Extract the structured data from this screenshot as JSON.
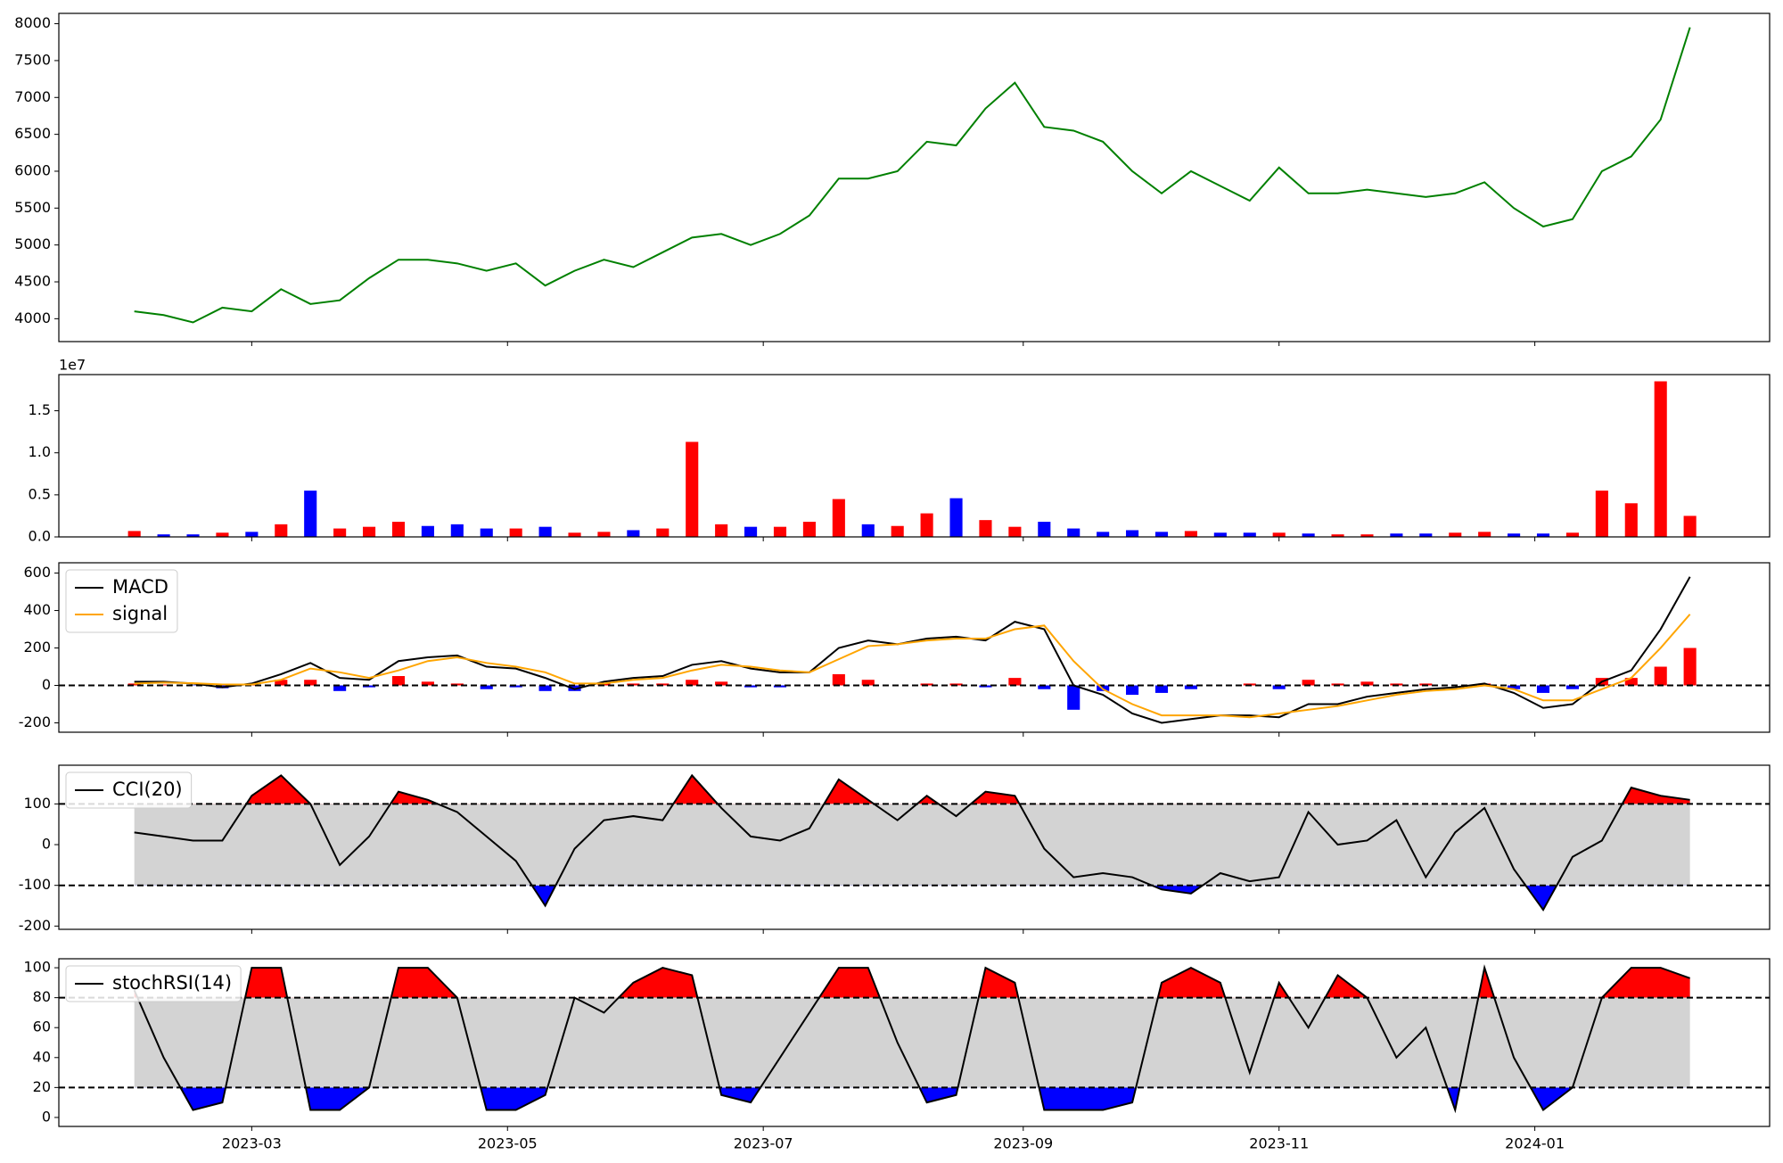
{
  "chart_data": [
    {
      "type": "line",
      "x": [
        31,
        38,
        45,
        52,
        59,
        66,
        73,
        80,
        87,
        94,
        101,
        108,
        115,
        122,
        129,
        136,
        143,
        150,
        157,
        164,
        171,
        178,
        185,
        192,
        199,
        206,
        213,
        220,
        227,
        234,
        241,
        248,
        255,
        262,
        269,
        276,
        283,
        290,
        297,
        304,
        311,
        318,
        325,
        332,
        339,
        346,
        353,
        360,
        367,
        374,
        381,
        388,
        395,
        402
      ],
      "series": [
        {
          "color": "green",
          "values": [
            4100,
            4050,
            3950,
            4150,
            4100,
            4400,
            4200,
            4250,
            4550,
            4800,
            4800,
            4750,
            4650,
            4750,
            4450,
            4650,
            4800,
            4700,
            4900,
            5100,
            5150,
            5000,
            5150,
            5400,
            5900,
            5900,
            6000,
            6400,
            6350,
            6850,
            7200,
            6600,
            6550,
            6400,
            6000,
            5700,
            6000,
            5800,
            5600,
            6050,
            5700,
            5700,
            5750,
            5700,
            5650,
            5700,
            5850,
            5500,
            5250,
            5350,
            6000,
            6200,
            6700,
            7950
          ]
        }
      ],
      "xlim": [
        13,
        421
      ],
      "ylim": [
        3690,
        8140
      ],
      "yticks": [
        4000,
        4500,
        5000,
        5500,
        6000,
        6500,
        7000,
        7500,
        8000
      ]
    },
    {
      "type": "bar",
      "x": [
        31,
        38,
        45,
        52,
        59,
        66,
        73,
        80,
        87,
        94,
        101,
        108,
        115,
        122,
        129,
        136,
        143,
        150,
        157,
        164,
        171,
        178,
        185,
        192,
        199,
        206,
        213,
        220,
        227,
        234,
        241,
        248,
        255,
        262,
        269,
        276,
        283,
        290,
        297,
        304,
        311,
        318,
        325,
        332,
        339,
        346,
        353,
        360,
        367,
        374,
        381,
        388,
        395,
        402
      ],
      "values": [
        0.07,
        0.03,
        0.03,
        0.05,
        0.06,
        0.15,
        0.55,
        0.1,
        0.12,
        0.18,
        0.13,
        0.15,
        0.1,
        0.1,
        0.12,
        0.05,
        0.06,
        0.08,
        0.1,
        1.13,
        0.15,
        0.12,
        0.12,
        0.18,
        0.45,
        0.15,
        0.13,
        0.28,
        0.46,
        0.2,
        0.12,
        0.18,
        0.1,
        0.06,
        0.08,
        0.06,
        0.07,
        0.05,
        0.05,
        0.05,
        0.04,
        0.03,
        0.03,
        0.04,
        0.04,
        0.05,
        0.06,
        0.04,
        0.04,
        0.05,
        0.55,
        0.4,
        1.85,
        0.25
      ],
      "colors": [
        "red",
        "blue",
        "blue",
        "red",
        "blue",
        "red",
        "blue",
        "red",
        "red",
        "red",
        "blue",
        "blue",
        "blue",
        "red",
        "blue",
        "red",
        "red",
        "blue",
        "red",
        "red",
        "red",
        "blue",
        "red",
        "red",
        "red",
        "blue",
        "red",
        "red",
        "blue",
        "red",
        "red",
        "blue",
        "blue",
        "blue",
        "blue",
        "blue",
        "red",
        "blue",
        "blue",
        "red",
        "blue",
        "red",
        "red",
        "blue",
        "blue",
        "red",
        "red",
        "blue",
        "blue",
        "red",
        "red",
        "red",
        "red",
        "red"
      ],
      "offset_label": "1e7",
      "xlim": [
        13,
        421
      ],
      "ylim": [
        0,
        1.93
      ],
      "yticks": [
        {
          "value": 0,
          "label": "0.0"
        },
        0.5,
        {
          "value": 1,
          "label": "1.0"
        },
        1.5
      ]
    },
    {
      "type": "line",
      "x": [
        31,
        38,
        45,
        52,
        59,
        66,
        73,
        80,
        87,
        94,
        101,
        108,
        115,
        122,
        129,
        136,
        143,
        150,
        157,
        164,
        171,
        178,
        185,
        192,
        199,
        206,
        213,
        220,
        227,
        234,
        241,
        248,
        255,
        262,
        269,
        276,
        283,
        290,
        297,
        304,
        311,
        318,
        325,
        332,
        339,
        346,
        353,
        360,
        367,
        374,
        381,
        388,
        395,
        402
      ],
      "series": [
        {
          "name": "MACD",
          "color": "black",
          "values": [
            20,
            20,
            10,
            -10,
            10,
            60,
            120,
            40,
            30,
            130,
            150,
            160,
            100,
            90,
            40,
            -20,
            20,
            40,
            50,
            110,
            130,
            90,
            70,
            70,
            200,
            240,
            220,
            250,
            260,
            240,
            340,
            300,
            0,
            -50,
            -150,
            -200,
            -180,
            -160,
            -160,
            -170,
            -100,
            -100,
            -60,
            -40,
            -20,
            -10,
            10,
            -40,
            -120,
            -100,
            20,
            80,
            300,
            580
          ]
        },
        {
          "name": "signal",
          "color": "orange",
          "values": [
            10,
            15,
            12,
            5,
            5,
            30,
            90,
            70,
            40,
            80,
            130,
            150,
            120,
            100,
            70,
            10,
            10,
            30,
            40,
            80,
            110,
            100,
            80,
            70,
            140,
            210,
            220,
            240,
            250,
            250,
            300,
            320,
            130,
            -20,
            -100,
            -160,
            -160,
            -160,
            -170,
            -150,
            -130,
            -110,
            -80,
            -50,
            -30,
            -20,
            0,
            -20,
            -80,
            -80,
            -20,
            40,
            200,
            380
          ]
        }
      ],
      "histogram": {
        "up_color": "red",
        "down_color": "blue",
        "values": [
          10,
          5,
          -2,
          -15,
          5,
          30,
          30,
          -30,
          -10,
          50,
          20,
          10,
          -20,
          -10,
          -30,
          -30,
          10,
          10,
          10,
          30,
          20,
          -10,
          -10,
          0,
          60,
          30,
          0,
          10,
          10,
          -10,
          40,
          -20,
          -130,
          -30,
          -50,
          -40,
          -20,
          0,
          10,
          -20,
          30,
          10,
          20,
          10,
          10,
          0,
          10,
          -20,
          -40,
          -20,
          40,
          40,
          100,
          200
        ]
      },
      "hlines": [
        0
      ],
      "legend": "upper left",
      "xlim": [
        13,
        421
      ],
      "ylim": [
        -250,
        655
      ],
      "yticks": [
        -200,
        0,
        200,
        400,
        600
      ]
    },
    {
      "type": "line",
      "x": [
        31,
        38,
        45,
        52,
        59,
        66,
        73,
        80,
        87,
        94,
        101,
        108,
        115,
        122,
        129,
        136,
        143,
        150,
        157,
        164,
        171,
        178,
        185,
        192,
        199,
        206,
        213,
        220,
        227,
        234,
        241,
        248,
        255,
        262,
        269,
        276,
        283,
        290,
        297,
        304,
        311,
        318,
        325,
        332,
        339,
        346,
        353,
        360,
        367,
        374,
        381,
        388,
        395,
        402
      ],
      "series": [
        {
          "name": "CCI(20)",
          "color": "black",
          "values": [
            30,
            20,
            10,
            10,
            120,
            170,
            100,
            -50,
            20,
            130,
            110,
            80,
            20,
            -40,
            -150,
            -10,
            60,
            70,
            60,
            170,
            90,
            20,
            10,
            40,
            160,
            110,
            60,
            120,
            70,
            130,
            120,
            -10,
            -80,
            -70,
            -80,
            -110,
            -120,
            -70,
            -90,
            -80,
            80,
            0,
            10,
            60,
            -80,
            30,
            90,
            -60,
            -160,
            -30,
            10,
            140,
            120,
            110
          ]
        }
      ],
      "hlines": [
        -100,
        100
      ],
      "band_color": "lightgray",
      "above_color": "red",
      "below_color": "blue",
      "legend": "upper left",
      "xlim": [
        13,
        421
      ],
      "ylim": [
        -208,
        195
      ],
      "yticks": [
        -200,
        -100,
        0,
        100
      ]
    },
    {
      "type": "line",
      "x": [
        31,
        38,
        45,
        52,
        59,
        66,
        73,
        80,
        87,
        94,
        101,
        108,
        115,
        122,
        129,
        136,
        143,
        150,
        157,
        164,
        171,
        178,
        185,
        192,
        199,
        206,
        213,
        220,
        227,
        234,
        241,
        248,
        255,
        262,
        269,
        276,
        283,
        290,
        297,
        304,
        311,
        318,
        325,
        332,
        339,
        346,
        353,
        360,
        367,
        374,
        381,
        388,
        395,
        402
      ],
      "series": [
        {
          "name": "stochRSI(14)",
          "color": "black",
          "values": [
            85,
            40,
            5,
            10,
            100,
            100,
            5,
            5,
            20,
            100,
            100,
            80,
            5,
            5,
            15,
            80,
            70,
            90,
            100,
            95,
            15,
            10,
            40,
            70,
            100,
            100,
            50,
            10,
            15,
            100,
            90,
            5,
            5,
            5,
            10,
            90,
            100,
            90,
            30,
            90,
            60,
            95,
            80,
            40,
            60,
            5,
            100,
            40,
            5,
            20,
            80,
            100,
            100,
            93
          ]
        }
      ],
      "hlines": [
        20,
        80
      ],
      "band_color": "lightgray",
      "above_color": "red",
      "below_color": "blue",
      "legend": "upper left",
      "xlim": [
        13,
        421
      ],
      "ylim": [
        -6,
        106
      ],
      "yticks": [
        0,
        20,
        40,
        60,
        80,
        100
      ],
      "xticks": [
        {
          "value": 59,
          "label": "2023-03"
        },
        {
          "value": 120,
          "label": "2023-05"
        },
        {
          "value": 181,
          "label": "2023-07"
        },
        {
          "value": 243,
          "label": "2023-09"
        },
        {
          "value": 304,
          "label": "2023-11"
        },
        {
          "value": 365,
          "label": "2024-01"
        }
      ]
    }
  ]
}
